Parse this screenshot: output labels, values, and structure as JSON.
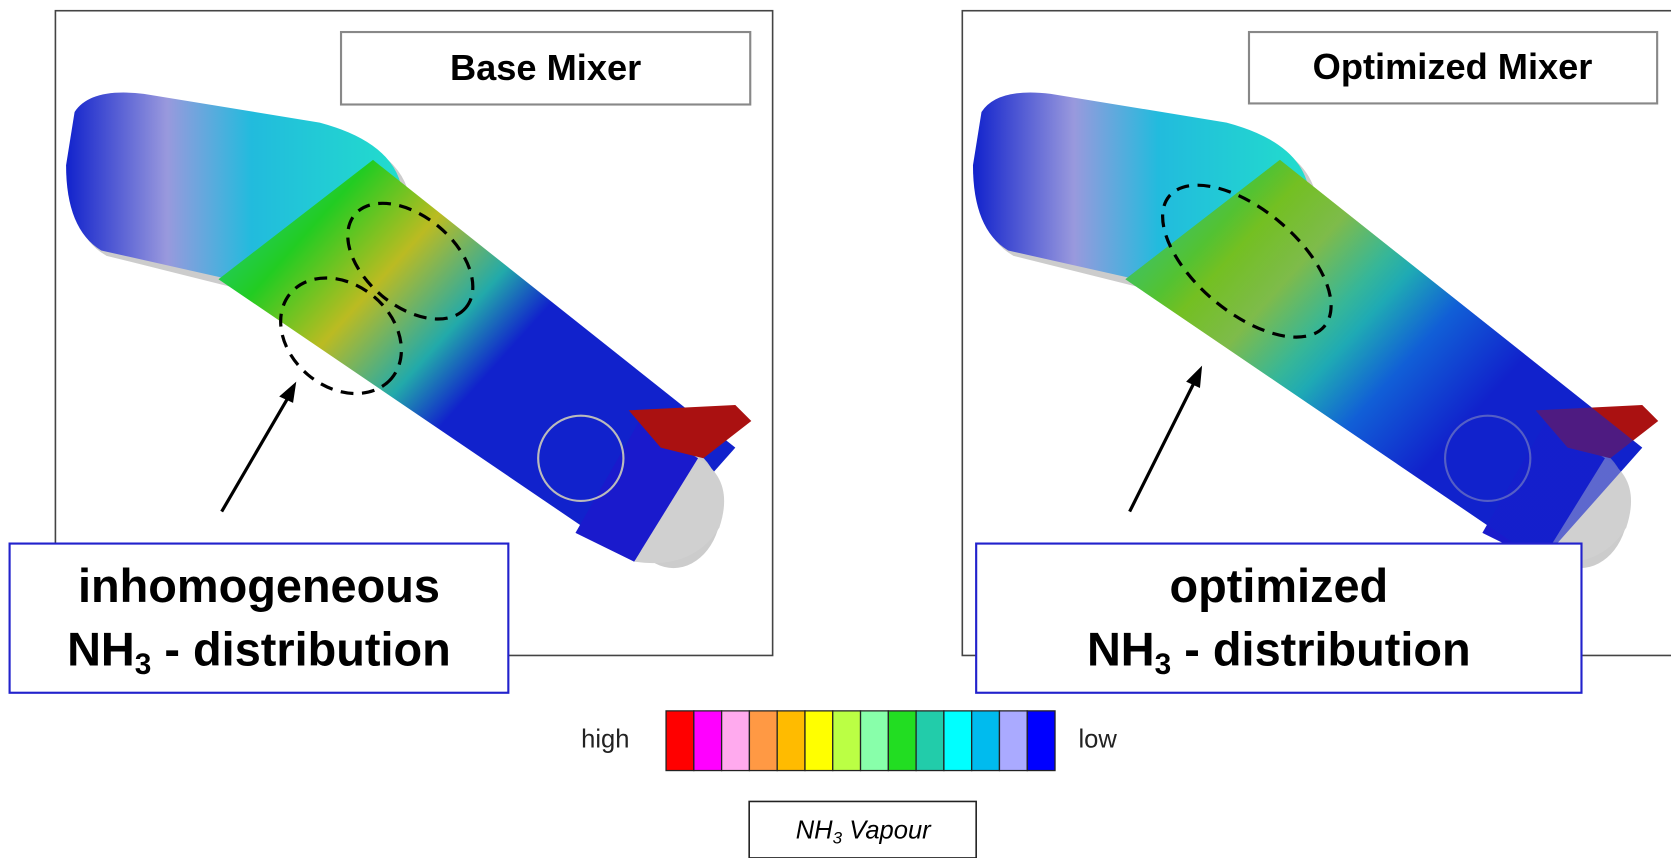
{
  "panels": [
    {
      "title": "Base Mixer",
      "caption": {
        "line1": "inhomogeneous",
        "formula": "NH",
        "subscript": "3",
        "rest": " - distribution"
      }
    },
    {
      "title": "Optimized Mixer",
      "caption": {
        "line1": "optimized",
        "formula": "NH",
        "subscript": "3",
        "rest": " - distribution"
      }
    }
  ],
  "legend": {
    "high": "high",
    "low": "low",
    "colors": [
      "#ff0000",
      "#ff00ff",
      "#ffaaee",
      "#ff9944",
      "#ffbb00",
      "#ffff00",
      "#bbff44",
      "#88ffaa",
      "#22dd22",
      "#22ccaa",
      "#00ffff",
      "#00bbee",
      "#aaaaff",
      "#0000ff"
    ],
    "label": {
      "formula": "NH",
      "subscript": "3",
      "rest": " Vapour"
    }
  }
}
